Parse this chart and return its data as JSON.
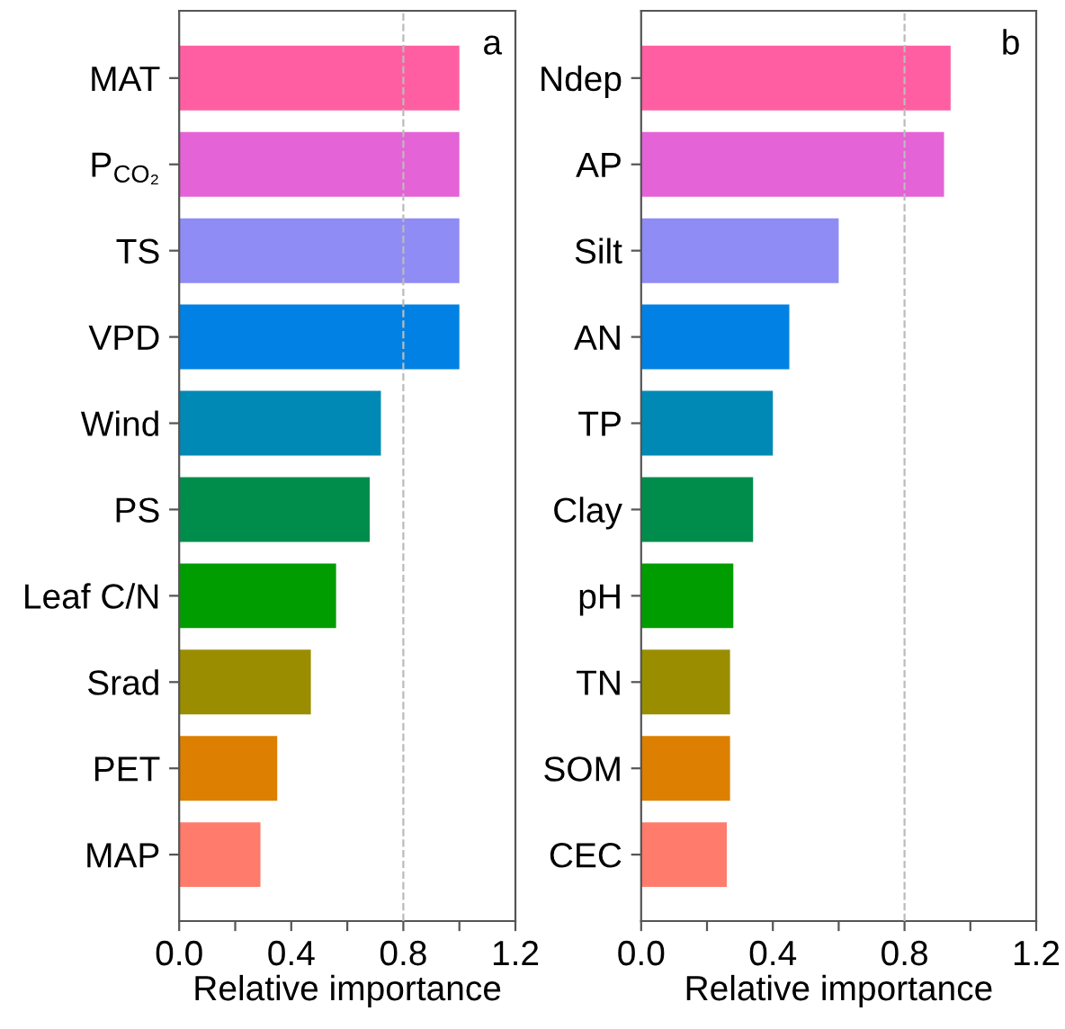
{
  "chart_data": [
    {
      "type": "bar",
      "orientation": "horizontal",
      "xlabel": "Relative importance",
      "categories": [
        "MAT",
        "P$_{CO₂}$",
        "TS",
        "VPD",
        "Wind",
        "PS",
        "Leaf C/N",
        "Srad",
        "PET",
        "MAP"
      ],
      "values": [
        1.0,
        1.0,
        1.0,
        1.0,
        0.72,
        0.68,
        0.56,
        0.47,
        0.35,
        0.29
      ],
      "colors": [
        "#ff5fa2",
        "#e463d6",
        "#8f8cf5",
        "#0081e3",
        "#0089b5",
        "#008d4c",
        "#009d00",
        "#9a8e00",
        "#dd7f00",
        "#ff7b6c"
      ],
      "xlim": [
        0,
        1.2
      ],
      "xticks": [
        {
          "value": 0,
          "label": "0.0"
        },
        {
          "value": 0.2,
          "label": null
        },
        {
          "value": 0.4,
          "label": "0.4"
        },
        {
          "value": 0.6,
          "label": null
        },
        {
          "value": 0.8,
          "label": "0.8"
        },
        {
          "value": 1.0,
          "label": null
        },
        {
          "value": 1.2,
          "label": "1.2"
        }
      ],
      "ref_lines": [
        {
          "axis": "x",
          "value": 0.8,
          "color": "#bbbbbb",
          "line_style": "dashed"
        }
      ],
      "annotations": [
        "a"
      ],
      "grid": false,
      "legend": false
    },
    {
      "type": "bar",
      "orientation": "horizontal",
      "xlabel": "Relative importance",
      "categories": [
        "Ndep",
        "AP",
        "Silt",
        "AN",
        "TP",
        "Clay",
        "pH",
        "TN",
        "SOM",
        "CEC"
      ],
      "values": [
        0.94,
        0.92,
        0.6,
        0.45,
        0.4,
        0.34,
        0.28,
        0.27,
        0.27,
        0.26
      ],
      "colors": [
        "#ff5fa2",
        "#e463d6",
        "#8f8cf5",
        "#0081e3",
        "#0089b5",
        "#008d4c",
        "#009d00",
        "#9a8e00",
        "#dd7f00",
        "#ff7b6c"
      ],
      "xlim": [
        0,
        1.2
      ],
      "xticks": [
        {
          "value": 0,
          "label": "0.0"
        },
        {
          "value": 0.2,
          "label": null
        },
        {
          "value": 0.4,
          "label": "0.4"
        },
        {
          "value": 0.6,
          "label": null
        },
        {
          "value": 0.8,
          "label": "0.8"
        },
        {
          "value": 1.0,
          "label": null
        },
        {
          "value": 1.2,
          "label": "1.2"
        }
      ],
      "ref_lines": [
        {
          "axis": "x",
          "value": 0.8,
          "color": "#bbbbbb",
          "line_style": "dashed"
        }
      ],
      "annotations": [
        "b"
      ],
      "grid": false,
      "legend": false
    }
  ]
}
